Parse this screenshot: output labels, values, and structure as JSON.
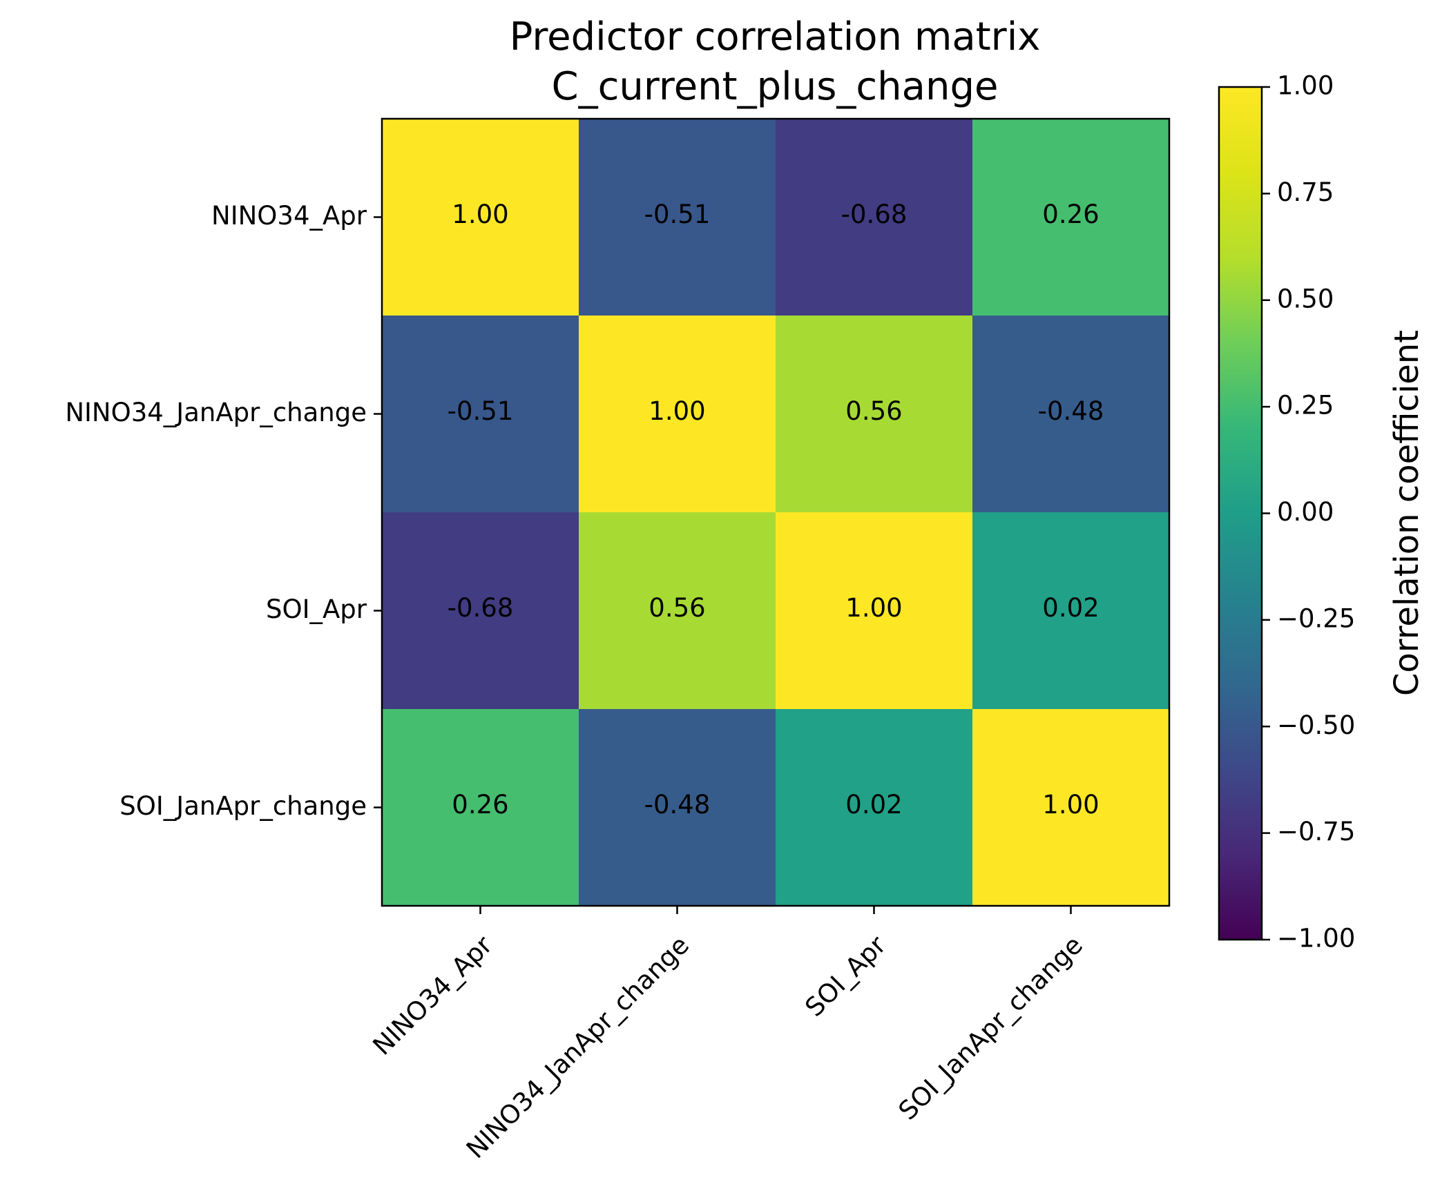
{
  "chart_data": {
    "type": "heatmap",
    "title": [
      "Predictor correlation matrix",
      "C_current_plus_change"
    ],
    "row_labels": [
      "NINO34_Apr",
      "NINO34_JanApr_change",
      "SOI_Apr",
      "SOI_JanApr_change"
    ],
    "col_labels": [
      "NINO34_Apr",
      "NINO34_JanApr_change",
      "SOI_Apr",
      "SOI_JanApr_change"
    ],
    "values": [
      [
        1.0,
        -0.51,
        -0.68,
        0.26
      ],
      [
        -0.51,
        1.0,
        0.56,
        -0.48
      ],
      [
        -0.68,
        0.56,
        1.0,
        0.02
      ],
      [
        0.26,
        -0.48,
        0.02,
        1.0
      ]
    ],
    "cell_labels": [
      [
        "1.00",
        "-0.51",
        "-0.68",
        "0.26"
      ],
      [
        "-0.51",
        "1.00",
        "0.56",
        "-0.48"
      ],
      [
        "-0.68",
        "0.56",
        "1.00",
        "0.02"
      ],
      [
        "0.26",
        "-0.48",
        "0.02",
        "1.00"
      ]
    ],
    "colormap": "viridis",
    "vmin": -1.0,
    "vmax": 1.0,
    "colorbar": {
      "label": "Correlation coefficient",
      "ticks": [
        1.0,
        0.75,
        0.5,
        0.25,
        0.0,
        -0.25,
        -0.5,
        -0.75,
        -1.0
      ],
      "tick_labels": [
        "1.00",
        "0.75",
        "0.50",
        "0.25",
        "0.00",
        "−0.25",
        "−0.50",
        "−0.75",
        "−1.00"
      ]
    },
    "grid": false
  }
}
